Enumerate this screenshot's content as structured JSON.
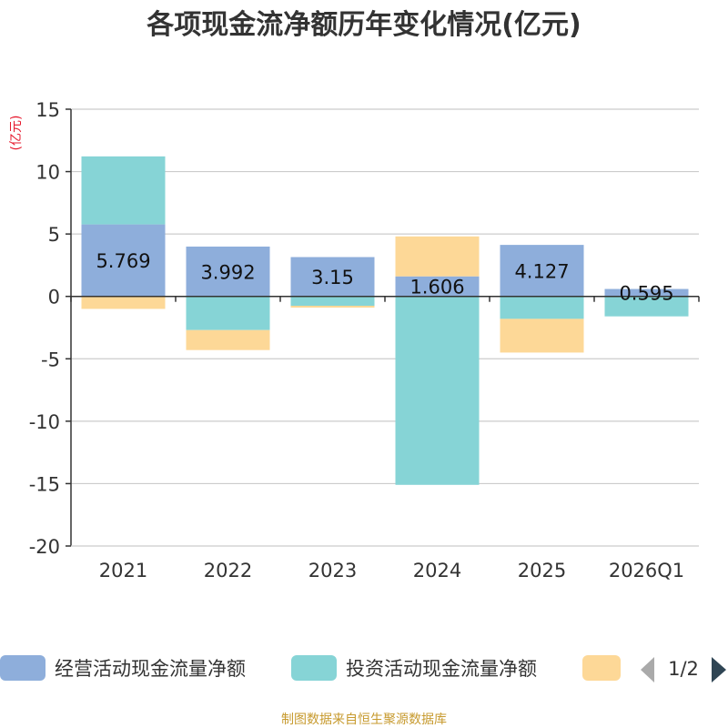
{
  "chart_data": {
    "type": "bar",
    "stacked": true,
    "title": "各项现金流净额历年变化情况(亿元)",
    "ylabel": "(亿元)",
    "ylim": [
      -20,
      15
    ],
    "yticks": [
      15,
      10,
      5,
      0,
      -5,
      -10,
      -15,
      -20
    ],
    "ytick_labels": [
      "15",
      "10",
      "5",
      "0",
      "-5",
      "-10",
      "-15",
      "-20"
    ],
    "grid": true,
    "categories": [
      "2021",
      "2022",
      "2023",
      "2024",
      "2025",
      "2026Q1"
    ],
    "series": [
      {
        "name": "经营活动现金流量净额",
        "color": "#8eaedb",
        "values": [
          5.769,
          3.992,
          3.15,
          1.606,
          4.127,
          0.595
        ],
        "labels": [
          "5.769",
          "3.992",
          "3.15",
          "1.606",
          "4.127",
          "0.595"
        ]
      },
      {
        "name": "投资活动现金流量净额",
        "color": "#86d4d6",
        "values": [
          5.45,
          -2.7,
          -0.75,
          -15.1,
          -1.8,
          -1.6
        ]
      },
      {
        "name": "",
        "color": "#fdd897",
        "values": [
          -1.0,
          -1.6,
          -0.15,
          3.2,
          -2.7,
          0.0
        ]
      }
    ],
    "legend": {
      "position": "bottom",
      "page": "1/2"
    },
    "source": "制图数据来自恒生聚源数据库"
  }
}
